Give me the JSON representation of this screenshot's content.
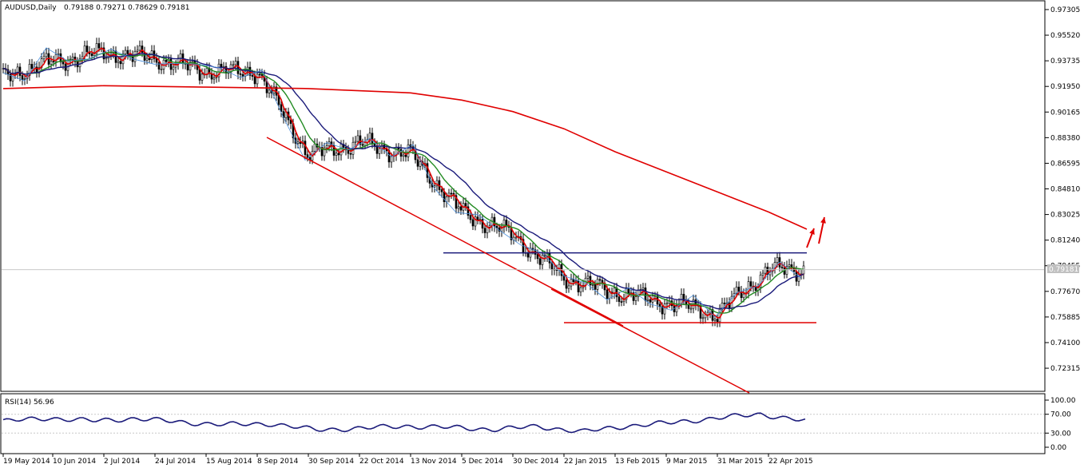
{
  "header": {
    "symbol": "AUDUSD,Daily",
    "ohlc": "0.79188 0.79271 0.78629 0.79181"
  },
  "rsi_label": "RSI(14) 56.96",
  "current_price_label": "0.79181",
  "colors": {
    "price": "#000000",
    "zigzag": "#4a8fdc",
    "ma_fast": "#e00000",
    "ma_mid": "#228b22",
    "ma_slow": "#1a1a7a",
    "ma_long": "#e00000",
    "resistance": "#1a1a7a",
    "support": "#e00000",
    "channel": "#e00000",
    "arrows": "#e00000",
    "rsi": "#1a1a7a"
  },
  "chart_data": [
    {
      "type": "line",
      "title": "AUDUSD,Daily",
      "y_ticks": [
        "0.97305",
        "0.95520",
        "0.93735",
        "0.91950",
        "0.90165",
        "0.88380",
        "0.86595",
        "0.84810",
        "0.83025",
        "0.81240",
        "0.79455",
        "0.77670",
        "0.75885",
        "0.74100",
        "0.72315"
      ],
      "ylim": [
        0.7076,
        0.9786
      ],
      "x_ticks": [
        "19 May 2014",
        "10 Jun 2014",
        "2 Jul 2014",
        "24 Jul 2014",
        "15 Aug 2014",
        "8 Sep 2014",
        "30 Sep 2014",
        "22 Oct 2014",
        "13 Nov 2014",
        "5 Dec 2014",
        "30 Dec 2014",
        "22 Jan 2015",
        "13 Feb 2015",
        "9 Mar 2015",
        "31 Mar 2015",
        "22 Apr 2015"
      ],
      "close_points": [
        [
          "19 May 2014",
          0.926
        ],
        [
          "10 Jun 2014",
          0.937
        ],
        [
          "2 Jul 2014",
          0.943
        ],
        [
          "24 Jul 2014",
          0.939
        ],
        [
          "15 Aug 2014",
          0.93
        ],
        [
          "8 Sep 2014",
          0.93
        ],
        [
          "30 Sep 2014",
          0.872
        ],
        [
          "22 Oct 2014",
          0.88
        ],
        [
          "13 Nov 2014",
          0.872
        ],
        [
          "5 Dec 2014",
          0.832
        ],
        [
          "30 Dec 2014",
          0.816
        ],
        [
          "22 Jan 2015",
          0.786
        ],
        [
          "13 Feb 2015",
          0.776
        ],
        [
          "9 Mar 2015",
          0.769
        ],
        [
          "31 Mar 2015",
          0.761
        ],
        [
          "22 Apr 2015",
          0.792
        ]
      ],
      "annotations": {
        "current_price": 0.79181,
        "resistance_level": 0.8035,
        "support_level": 0.7549,
        "channel_upper": [
          [
            "8 Sep 2014",
            0.884
          ],
          [
            "30 Dec 2014",
            0.799
          ]
        ],
        "channel_lower": [
          [
            "22 Jan 2015",
            0.757
          ],
          [
            "22 Apr 2015",
            0.707
          ]
        ]
      }
    },
    {
      "type": "line",
      "title": "RSI(14) 56.96",
      "y_ticks": [
        "100.00",
        "70.00",
        "30.00",
        "0.00"
      ],
      "ylim": [
        0,
        100
      ],
      "current_value": 56.96,
      "series_values_approx": [
        55,
        62,
        56,
        61,
        53,
        48,
        50,
        37,
        40,
        45,
        42,
        38,
        44,
        33,
        45,
        52,
        62,
        70,
        56
      ]
    }
  ]
}
